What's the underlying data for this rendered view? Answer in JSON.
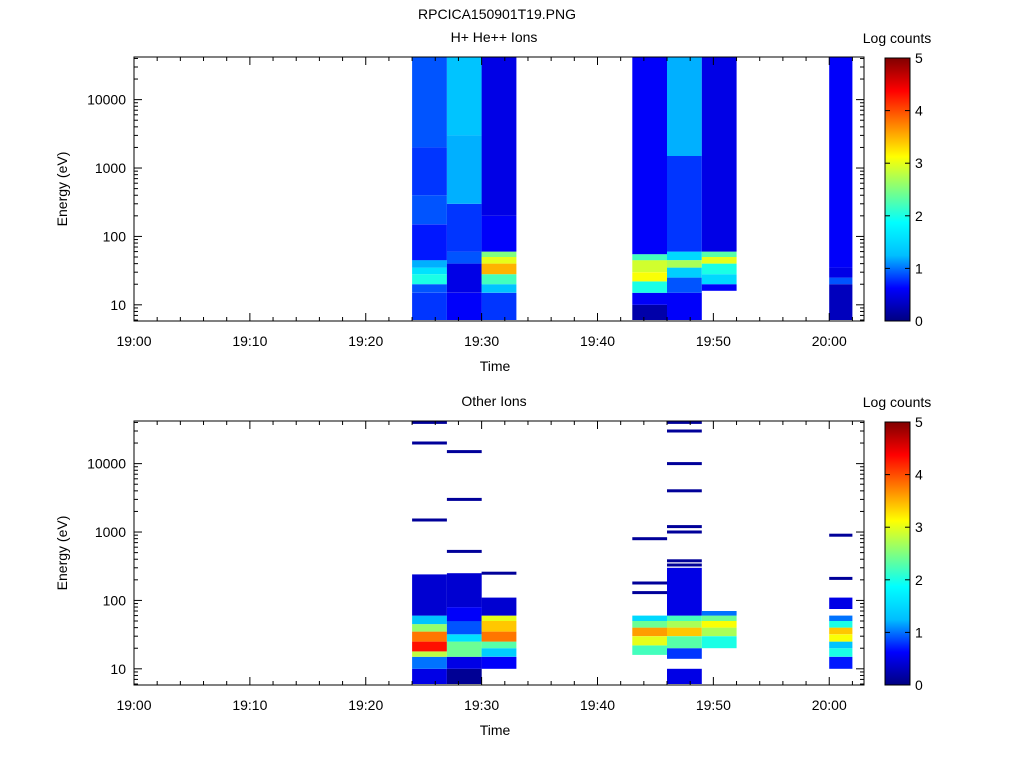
{
  "figure": {
    "title": "RPCICA150901T19.PNG"
  },
  "colorscale": {
    "stops": [
      "#000080",
      "#0000ff",
      "#00bfff",
      "#00ffff",
      "#80ff80",
      "#ffff00",
      "#ff8000",
      "#ff0000",
      "#800000"
    ],
    "range": [
      0,
      5
    ],
    "ticks": [
      "0",
      "1",
      "2",
      "3",
      "4",
      "5"
    ]
  },
  "chart_data": [
    {
      "type": "heatmap",
      "title": "H+ He++ Ions",
      "xlabel": "Time",
      "ylabel": "Energy (eV)",
      "colorbar_label": "Log counts",
      "yscale": "log",
      "ylim": [
        5.8,
        42000
      ],
      "xlim": [
        "19:00",
        "20:03"
      ],
      "x_ticks": [
        "19:00",
        "19:10",
        "19:20",
        "19:30",
        "19:40",
        "19:50",
        "20:00"
      ],
      "y_ticks": [
        "10",
        "100",
        "1000",
        "10000"
      ],
      "columns": [
        {
          "start": "19:24",
          "end": "19:27",
          "bands": [
            [
              6,
              15,
              0.8
            ],
            [
              15,
              20,
              0.9
            ],
            [
              20,
              28,
              2.0
            ],
            [
              28,
              35,
              1.6
            ],
            [
              35,
              45,
              1.2
            ],
            [
              45,
              150,
              0.7
            ],
            [
              150,
              400,
              0.9
            ],
            [
              400,
              2000,
              0.8
            ],
            [
              2000,
              42000,
              0.9
            ]
          ]
        },
        {
          "start": "19:27",
          "end": "19:30",
          "bands": [
            [
              6,
              15,
              0.6
            ],
            [
              15,
              40,
              0.5
            ],
            [
              40,
              60,
              0.9
            ],
            [
              60,
              300,
              0.8
            ],
            [
              300,
              3000,
              1.2
            ],
            [
              3000,
              42000,
              1.3
            ]
          ]
        },
        {
          "start": "19:30",
          "end": "19:33",
          "bands": [
            [
              6,
              15,
              0.8
            ],
            [
              15,
              20,
              1.3
            ],
            [
              20,
              28,
              2.2
            ],
            [
              28,
              40,
              3.5
            ],
            [
              40,
              50,
              3.0
            ],
            [
              50,
              60,
              2.5
            ],
            [
              60,
              200,
              0.6
            ],
            [
              200,
              42000,
              0.5
            ]
          ]
        },
        {
          "start": "19:43",
          "end": "19:46",
          "bands": [
            [
              6,
              10,
              0.2
            ],
            [
              10,
              15,
              0.6
            ],
            [
              15,
              22,
              2.0
            ],
            [
              22,
              30,
              3.1
            ],
            [
              30,
              45,
              2.9
            ],
            [
              45,
              55,
              2.2
            ],
            [
              55,
              42000,
              0.6
            ]
          ]
        },
        {
          "start": "19:46",
          "end": "19:49",
          "bands": [
            [
              6,
              15,
              0.6
            ],
            [
              15,
              25,
              0.9
            ],
            [
              25,
              35,
              1.4
            ],
            [
              35,
              45,
              2.7
            ],
            [
              45,
              60,
              1.5
            ],
            [
              60,
              1500,
              0.8
            ],
            [
              1500,
              42000,
              1.2
            ]
          ]
        },
        {
          "start": "19:49",
          "end": "19:52",
          "bands": [
            [
              16,
              20,
              0.6
            ],
            [
              20,
              28,
              1.5
            ],
            [
              28,
              40,
              2.0
            ],
            [
              40,
              50,
              3.0
            ],
            [
              50,
              60,
              2.3
            ],
            [
              60,
              42000,
              0.5
            ]
          ]
        },
        {
          "start": "20:00",
          "end": "20:02",
          "bands": [
            [
              6,
              20,
              0.3
            ],
            [
              20,
              25,
              0.9
            ],
            [
              25,
              35,
              0.5
            ],
            [
              35,
              42000,
              0.6
            ]
          ]
        }
      ]
    },
    {
      "type": "heatmap",
      "title": "Other Ions",
      "xlabel": "Time",
      "ylabel": "Energy (eV)",
      "colorbar_label": "Log counts",
      "yscale": "log",
      "ylim": [
        5.8,
        42000
      ],
      "xlim": [
        "19:00",
        "20:03"
      ],
      "x_ticks": [
        "19:00",
        "19:10",
        "19:20",
        "19:30",
        "19:40",
        "19:50",
        "20:00"
      ],
      "y_ticks": [
        "10",
        "100",
        "1000",
        "10000"
      ],
      "columns": [
        {
          "start": "19:24",
          "end": "19:27",
          "bands": [
            [
              6,
              10,
              0.5
            ],
            [
              10,
              15,
              1.0
            ],
            [
              15,
              18,
              2.8
            ],
            [
              18,
              25,
              4.3
            ],
            [
              25,
              35,
              3.8
            ],
            [
              35,
              45,
              2.6
            ],
            [
              45,
              60,
              1.3
            ],
            [
              60,
              240,
              0.4
            ]
          ],
          "lines": [
            40000,
            20000,
            1500
          ]
        },
        {
          "start": "19:27",
          "end": "19:30",
          "bands": [
            [
              6,
              10,
              0.1
            ],
            [
              10,
              15,
              0.5
            ],
            [
              15,
              25,
              2.4
            ],
            [
              25,
              32,
              1.6
            ],
            [
              32,
              50,
              0.9
            ],
            [
              50,
              80,
              0.6
            ],
            [
              80,
              250,
              0.4
            ]
          ],
          "lines": [
            15000,
            3000,
            520
          ]
        },
        {
          "start": "19:30",
          "end": "19:33",
          "bands": [
            [
              10,
              15,
              0.6
            ],
            [
              15,
              20,
              1.4
            ],
            [
              20,
              25,
              2.3
            ],
            [
              25,
              35,
              3.8
            ],
            [
              35,
              50,
              3.4
            ],
            [
              50,
              60,
              3.0
            ],
            [
              60,
              110,
              0.4
            ]
          ],
          "lines": [
            250
          ]
        },
        {
          "start": "19:43",
          "end": "19:46",
          "bands": [
            [
              16,
              22,
              2.2
            ],
            [
              22,
              30,
              3.0
            ],
            [
              30,
              40,
              3.6
            ],
            [
              40,
              50,
              2.4
            ],
            [
              50,
              60,
              1.5
            ]
          ],
          "lines": [
            800,
            180,
            130
          ]
        },
        {
          "start": "19:46",
          "end": "19:49",
          "bands": [
            [
              6,
              10,
              0.5
            ],
            [
              14,
              20,
              0.8
            ],
            [
              20,
              30,
              2.3
            ],
            [
              30,
              40,
              3.4
            ],
            [
              40,
              50,
              2.7
            ],
            [
              50,
              60,
              2.2
            ],
            [
              60,
              300,
              0.5
            ]
          ],
          "lines": [
            40000,
            30000,
            10000,
            4000,
            1200,
            1000,
            380,
            330
          ]
        },
        {
          "start": "19:49",
          "end": "19:52",
          "bands": [
            [
              20,
              30,
              2.0
            ],
            [
              30,
              40,
              2.7
            ],
            [
              40,
              50,
              3.1
            ],
            [
              50,
              60,
              2.4
            ],
            [
              60,
              70,
              1.0
            ]
          ],
          "lines": []
        },
        {
          "start": "20:00",
          "end": "20:02",
          "bands": [
            [
              10,
              15,
              0.7
            ],
            [
              15,
              20,
              2.0
            ],
            [
              20,
              25,
              1.3
            ],
            [
              25,
              32,
              3.1
            ],
            [
              32,
              40,
              3.4
            ],
            [
              40,
              50,
              2.0
            ],
            [
              50,
              60,
              1.0
            ],
            [
              75,
              110,
              0.5
            ]
          ],
          "lines": [
            900,
            210
          ]
        }
      ]
    }
  ]
}
